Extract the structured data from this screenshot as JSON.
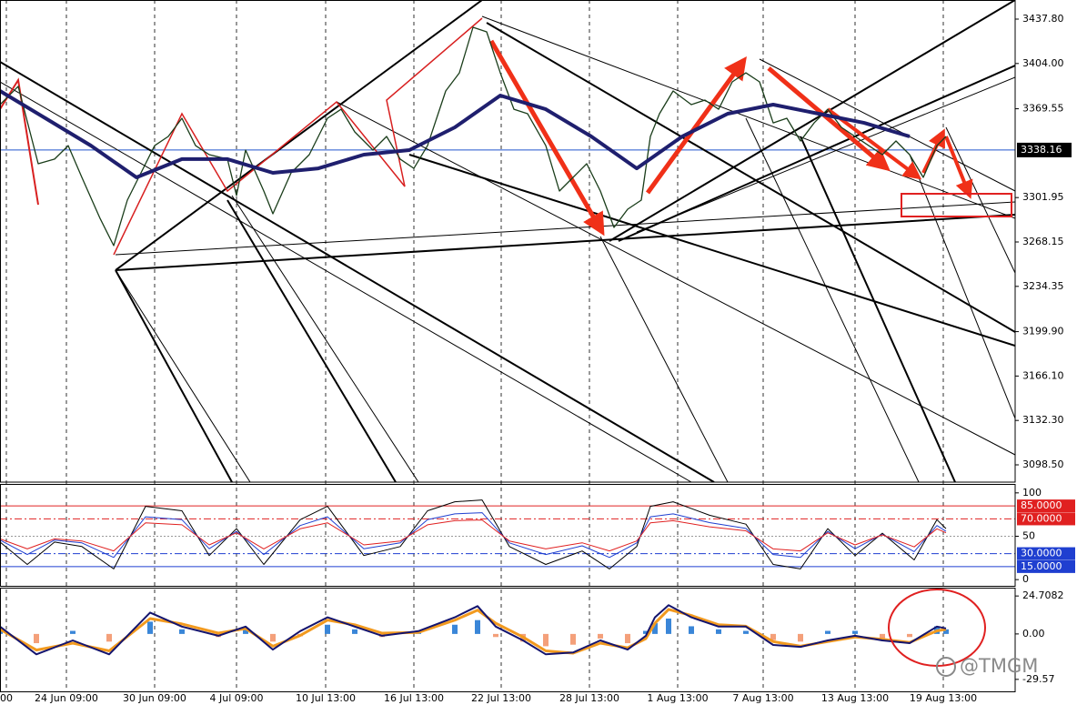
{
  "chart_data": [
    {
      "type": "line",
      "xlim": [
        0,
        111.6
      ],
      "xticks": [
        {
          "value": 0.7,
          "label": "00"
        },
        {
          "value": 7.3,
          "label": "24 Jun 09:00"
        },
        {
          "value": 17,
          "label": "30 Jun 09:00"
        },
        {
          "value": 26,
          "label": "4 Jul 09:00"
        },
        {
          "value": 35.8,
          "label": "10 Jul 13:00"
        },
        {
          "value": 45.5,
          "label": "16 Jul 13:00"
        },
        {
          "value": 55.1,
          "label": "22 Jul 13:00"
        },
        {
          "value": 64.8,
          "label": "28 Jul 13:00"
        },
        {
          "value": 74.5,
          "label": "1 Aug 13:00"
        },
        {
          "value": 83.9,
          "label": "7 Aug 13:00"
        },
        {
          "value": 94,
          "label": "13 Aug 13:00"
        },
        {
          "value": 103.7,
          "label": "19 Aug 13:00"
        }
      ],
      "ylim": [
        3085.34,
        3452.34
      ],
      "yticks": [
        {
          "value": 3437.8,
          "label": "3437.80"
        },
        {
          "value": 3404,
          "label": "3404.00"
        },
        {
          "value": 3369.55,
          "label": "3369.55"
        },
        {
          "value": 3301.95,
          "label": "3301.95"
        },
        {
          "value": 3268.15,
          "label": "3268.15"
        },
        {
          "value": 3234.35,
          "label": "3234.35"
        },
        {
          "value": 3199.9,
          "label": "3199.90"
        },
        {
          "value": 3166.1,
          "label": "3166.10"
        },
        {
          "value": 3132.3,
          "label": "3132.30"
        },
        {
          "value": 3098.5,
          "label": "3098.50"
        }
      ],
      "current_price": {
        "value": 3338.16,
        "label": "3338.16",
        "color": "#2255cc"
      },
      "series": [
        {
          "color": "#1a3d1a",
          "width": 1.3,
          "x": [
            0,
            2,
            4.2,
            6,
            7.5,
            9,
            11,
            12.5,
            14,
            15.5,
            17,
            18.5,
            20,
            21.5,
            23,
            25,
            26,
            27,
            29,
            30,
            32,
            34,
            36,
            37.5,
            39,
            41,
            42.5,
            44,
            45.5,
            47,
            49,
            50.5,
            52,
            53.5,
            55,
            56.5,
            58,
            60,
            61.5,
            63,
            64.5,
            66,
            67.5,
            69,
            70.5,
            71.5,
            72.5,
            74,
            76,
            77.5,
            79,
            80.5,
            82,
            83.5,
            85,
            86.5,
            88,
            89.5,
            91,
            92.5,
            94,
            95.5,
            97,
            98.5,
            100,
            101.5,
            103,
            104
          ],
          "values": [
            3372.7,
            3386.6,
            3327.7,
            3331.2,
            3341.5,
            3317.3,
            3286.1,
            3265.4,
            3300.0,
            3320.8,
            3341.5,
            3348.5,
            3362.3,
            3341.5,
            3334.6,
            3331.2,
            3303.5,
            3338.1,
            3306.9,
            3289.6,
            3320.8,
            3334.6,
            3362.3,
            3369.2,
            3351.9,
            3338.1,
            3348.5,
            3331.2,
            3324.2,
            3341.5,
            3383.1,
            3396.9,
            3431.6,
            3428.1,
            3396.9,
            3369.2,
            3365.8,
            3341.5,
            3306.9,
            3317.3,
            3327.7,
            3306.9,
            3279.2,
            3293.1,
            3300.0,
            3348.5,
            3365.8,
            3383.1,
            3372.7,
            3376.2,
            3369.2,
            3390.0,
            3396.9,
            3390.0,
            3358.8,
            3362.3,
            3345.0,
            3358.8,
            3369.2,
            3355.4,
            3348.5,
            3341.5,
            3334.6,
            3345.0,
            3334.6,
            3317.3,
            3341.5,
            3348.5
          ]
        },
        {
          "color": "#1f1f6e",
          "width": 4,
          "x": [
            0,
            5,
            10,
            15,
            20,
            25,
            30,
            35,
            40,
            45,
            50,
            55,
            60,
            65,
            70,
            75,
            80,
            85,
            90,
            95,
            100
          ],
          "values": [
            3383.1,
            3362.3,
            3341.5,
            3317.3,
            3331.2,
            3331.2,
            3320.8,
            3324.2,
            3334.6,
            3338.1,
            3355.4,
            3379.6,
            3369.2,
            3348.5,
            3324.2,
            3348.5,
            3365.8,
            3372.7,
            3365.8,
            3358.8,
            3348.5
          ]
        }
      ]
    },
    {
      "type": "line",
      "ylim": [
        -8.2,
        110.3
      ],
      "yticks": [
        100,
        {
          "value": 85,
          "label": "85.0000",
          "color": "#e02020"
        },
        {
          "value": 70,
          "label": "70.0000",
          "color": "#e02020",
          "dash": true
        },
        50,
        {
          "value": 30,
          "label": "30.0000",
          "color": "#1f3fd0",
          "dash": true
        },
        {
          "value": 15,
          "label": "15.0000",
          "color": "#1f3fd0"
        },
        0
      ],
      "midline": 50,
      "x": [
        0,
        3,
        6,
        9,
        12.5,
        16,
        20,
        23,
        26,
        29,
        33,
        36,
        40,
        44,
        47,
        50,
        53,
        56,
        60,
        64,
        67,
        70,
        71.5,
        74,
        78,
        82,
        85,
        88,
        91,
        94,
        97,
        100.5,
        103,
        104
      ],
      "series": [
        {
          "color": "#000000",
          "width": 1,
          "values": [
            43.3,
            17.5,
            43.3,
            38.1,
            12.4,
            84.5,
            79.4,
            27.8,
            58.8,
            17.5,
            69.1,
            84.5,
            27.8,
            38.1,
            79.4,
            89.7,
            91.8,
            38.1,
            17.5,
            33.0,
            12.4,
            38.1,
            84.5,
            89.7,
            74.2,
            63.9,
            17.5,
            12.4,
            58.8,
            27.8,
            53.6,
            22.7,
            69.1,
            58.8
          ]
        },
        {
          "color": "#1f3fd0",
          "width": 1,
          "values": [
            45.6,
            28.9,
            45.6,
            42.3,
            25.6,
            72.4,
            69.1,
            35.6,
            55.7,
            28.9,
            62.4,
            72.4,
            35.6,
            42.3,
            69.1,
            75.8,
            77.2,
            42.3,
            28.9,
            39.0,
            25.6,
            42.3,
            72.4,
            75.8,
            65.7,
            59.0,
            28.9,
            25.6,
            55.7,
            35.6,
            52.3,
            32.3,
            62.4,
            55.7
          ]
        },
        {
          "color": "#e02020",
          "width": 1,
          "values": [
            47.0,
            35.4,
            47.0,
            44.6,
            33.1,
            65.5,
            63.2,
            40.0,
            54.0,
            35.4,
            58.6,
            65.5,
            40.0,
            44.6,
            63.2,
            67.9,
            68.8,
            44.6,
            35.4,
            42.4,
            33.1,
            44.6,
            65.5,
            67.9,
            60.9,
            56.3,
            35.4,
            33.1,
            54.0,
            40.0,
            51.6,
            37.7,
            58.6,
            54.0
          ]
        }
      ]
    },
    {
      "type": "macd",
      "ylim": [
        -37.37,
        30.13
      ],
      "yticks": [
        24.7082,
        {
          "value": 0,
          "label": "0.00"
        },
        -29.57
      ],
      "x": [
        0,
        4,
        8,
        12,
        16.5,
        20,
        24,
        27,
        30,
        33,
        36,
        39,
        42,
        46,
        50,
        52.5,
        54.5,
        57.5,
        60,
        63,
        66,
        69,
        71,
        72,
        73.5,
        76,
        79,
        82,
        85,
        88,
        91,
        94,
        97,
        100,
        103,
        104
      ],
      "histogram": {
        "color_up": "#3a86d8",
        "color_down": "#f4a07a",
        "values": [
          4.0,
          -6.0,
          2.0,
          -5.0,
          8.0,
          3.0,
          -2.0,
          3.0,
          -5.0,
          -1.5,
          6.0,
          3.0,
          -2.0,
          1.0,
          6.0,
          9.0,
          -2.0,
          -5.0,
          -8.0,
          -7.0,
          -3.0,
          -6.0,
          2.0,
          7.0,
          10.0,
          5.0,
          3.0,
          2.0,
          -4.0,
          -5.0,
          2.0,
          2.0,
          -3.0,
          -2.0,
          5.0,
          3.0
        ]
      },
      "series": [
        {
          "color": "#f29a1f",
          "width": 3,
          "values": [
            3.0,
            -10.5,
            -6.0,
            -11.0,
            10.0,
            6.5,
            0.5,
            3.5,
            -8.0,
            -1.0,
            9.0,
            6.0,
            0.5,
            1.0,
            9.0,
            15.5,
            7.0,
            -2.0,
            -11.0,
            -12.5,
            -6.0,
            -9.0,
            -3.0,
            7.0,
            16.0,
            12.0,
            6.0,
            5.0,
            -5.0,
            -8.0,
            -5.0,
            -2.0,
            -3.5,
            -5.5,
            2.0,
            3.0
          ]
        },
        {
          "color": "#14146e",
          "width": 2,
          "values": [
            4.8,
            -13.3,
            -4.2,
            -13.3,
            13.9,
            4.8,
            -1.2,
            4.8,
            -10.2,
            1.8,
            10.8,
            4.8,
            -1.2,
            1.8,
            10.8,
            18.1,
            4.8,
            -4.2,
            -13.3,
            -12.1,
            -4.2,
            -10.2,
            -1.2,
            10.8,
            18.7,
            10.8,
            4.8,
            4.8,
            -7.2,
            -8.4,
            -4.2,
            -1.2,
            -4.2,
            -6.0,
            4.8,
            3.6
          ]
        }
      ]
    }
  ],
  "watermark": "@TMGM"
}
